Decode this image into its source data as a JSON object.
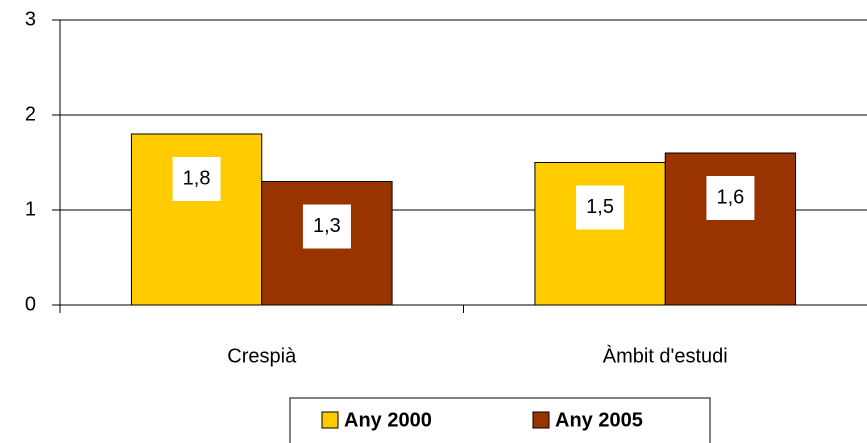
{
  "chart_data": {
    "type": "bar",
    "categories": [
      "Crespià",
      "Àmbit d'estudi"
    ],
    "series": [
      {
        "name": "Any 2000",
        "color": "#ffcc00",
        "values": [
          1.8,
          1.5
        ],
        "value_labels": [
          "1,8",
          "1,5"
        ]
      },
      {
        "name": "Any 2005",
        "color": "#993300",
        "values": [
          1.3,
          1.6
        ],
        "value_labels": [
          "1,3",
          "1,6"
        ]
      }
    ],
    "ylim": [
      0,
      3
    ],
    "yticks": [
      0,
      1,
      2,
      3
    ],
    "grid": true,
    "legend": "bottom"
  }
}
